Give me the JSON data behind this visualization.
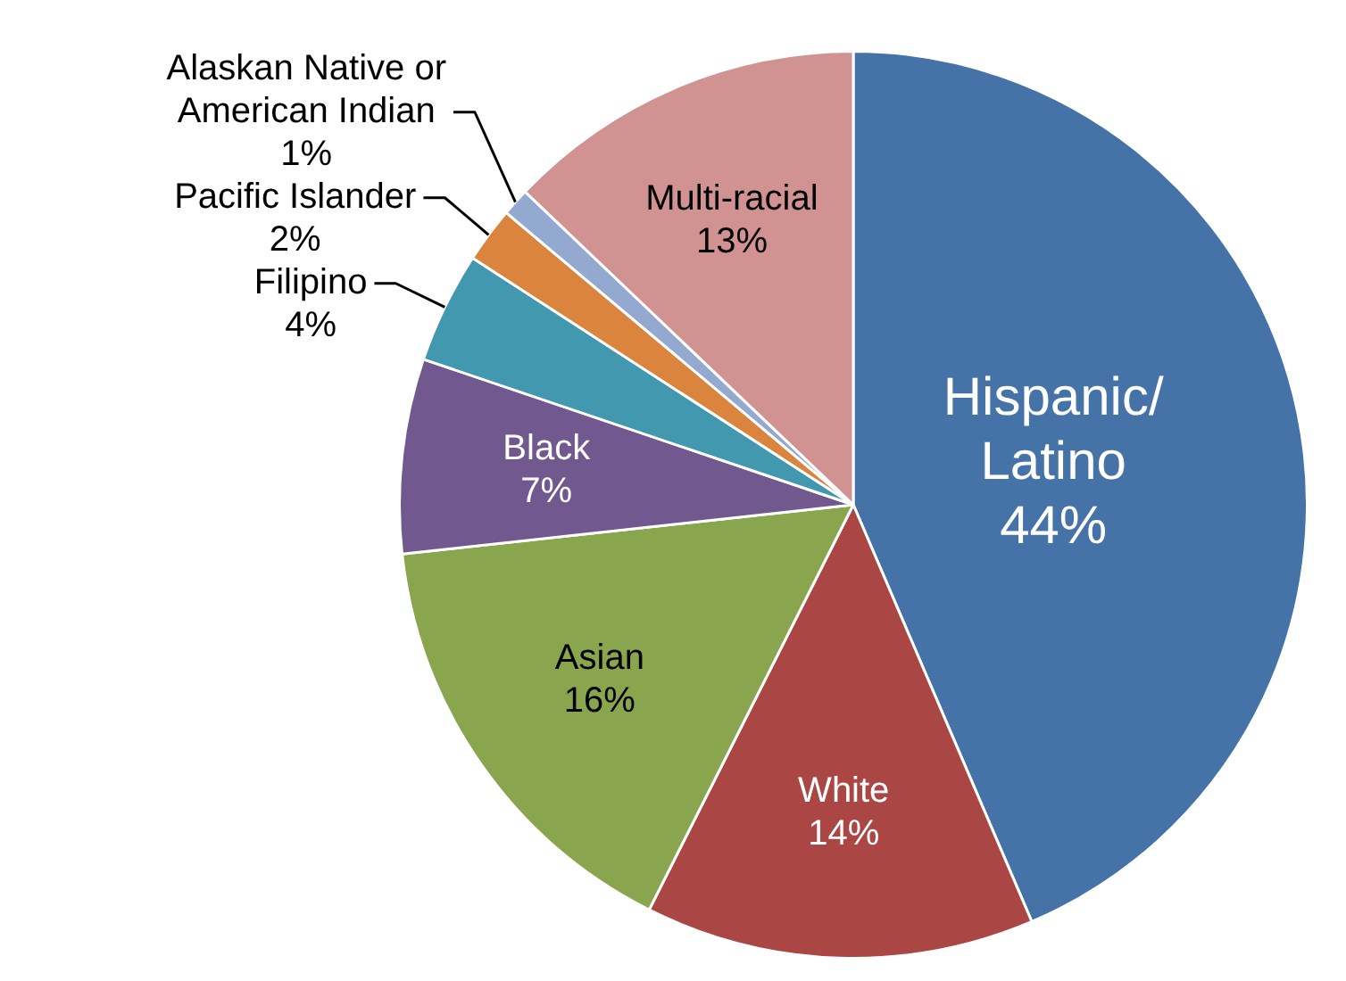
{
  "chart_data": {
    "type": "pie",
    "categories": [
      "Hispanic/ Latino",
      "White",
      "Asian",
      "Black",
      "Filipino",
      "Pacific Islander",
      "Alaskan Native or American Indian",
      "Multi-racial"
    ],
    "values": [
      44,
      14,
      16,
      7,
      4,
      2,
      1,
      13
    ],
    "value_labels": [
      "44%",
      "14%",
      "16%",
      "7%",
      "4%",
      "2%",
      "1%",
      "13%"
    ],
    "colors": [
      "#4572a7",
      "#aa4643",
      "#89a54e",
      "#71588f",
      "#4198af",
      "#db843d",
      "#93a9cf",
      "#d19392"
    ],
    "legend": false
  }
}
